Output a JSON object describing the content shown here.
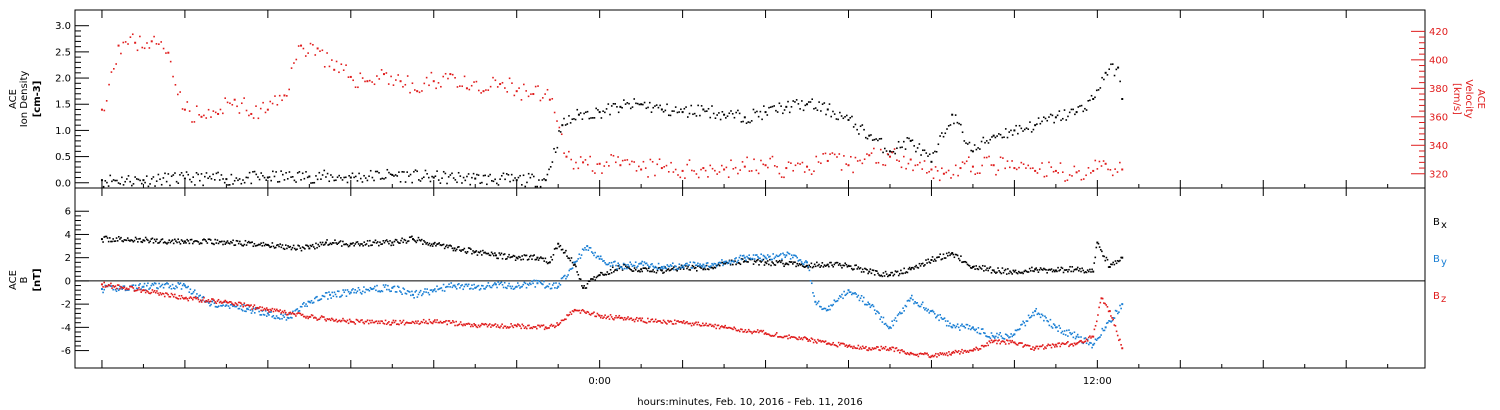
{
  "xlabel": "hours:minutes, Feb. 10, 2016 - Feb. 11, 2016",
  "x_ticks": [
    {
      "t": -12,
      "label": ""
    },
    {
      "t": -10,
      "label": ""
    },
    {
      "t": -8,
      "label": ""
    },
    {
      "t": -6,
      "label": ""
    },
    {
      "t": -4,
      "label": ""
    },
    {
      "t": -2,
      "label": ""
    },
    {
      "t": 0,
      "label": "0:00"
    },
    {
      "t": 2,
      "label": ""
    },
    {
      "t": 4,
      "label": ""
    },
    {
      "t": 6,
      "label": ""
    },
    {
      "t": 8,
      "label": ""
    },
    {
      "t": 10,
      "label": ""
    },
    {
      "t": 12,
      "label": "12:00"
    },
    {
      "t": 14,
      "label": ""
    },
    {
      "t": 16,
      "label": ""
    },
    {
      "t": 18,
      "label": ""
    }
  ],
  "colors": {
    "black": "#000000",
    "red": "#e01c1c",
    "blue": "#1a7fd4"
  },
  "chart_data": [
    {
      "type": "scatter",
      "panel": "plasma",
      "ylabel_lines": [
        "ACE",
        "Ion Density",
        "[cm-3]"
      ],
      "ylabel": "ACE Ion Density [cm-3]",
      "ylim": [
        -0.1,
        3.3
      ],
      "yticks": [
        "0.0",
        "0.5",
        "1.0",
        "1.5",
        "2.0",
        "2.5",
        "3.0"
      ],
      "ytick_values": [
        0.0,
        0.5,
        1.0,
        1.5,
        2.0,
        2.5,
        3.0
      ],
      "y2label_lines": [
        "ACE",
        "Velocity",
        "[km/s]"
      ],
      "y2label": "ACE Velocity [km/s]",
      "y2lim": [
        310,
        435
      ],
      "y2ticks": [
        "320",
        "340",
        "360",
        "380",
        "400",
        "420"
      ],
      "y2tick_values": [
        320,
        340,
        360,
        380,
        400,
        420
      ],
      "series": [
        {
          "name": "Ion Density",
          "axis": "left",
          "color": "#000000",
          "points": [
            [
              -12.0,
              0.05
            ],
            [
              -11,
              0.05
            ],
            [
              -10,
              0.08
            ],
            [
              -9,
              0.07
            ],
            [
              -8,
              0.1
            ],
            [
              -7,
              0.12
            ],
            [
              -6,
              0.1
            ],
            [
              -5,
              0.15
            ],
            [
              -4,
              0.1
            ],
            [
              -3,
              0.08
            ],
            [
              -2,
              0.05
            ],
            [
              -1.3,
              0.05
            ],
            [
              -0.9,
              1.1
            ],
            [
              -0.5,
              1.3
            ],
            [
              0.0,
              1.35
            ],
            [
              0.5,
              1.45
            ],
            [
              1.0,
              1.5
            ],
            [
              1.5,
              1.4
            ],
            [
              2.0,
              1.35
            ],
            [
              2.5,
              1.4
            ],
            [
              3.0,
              1.3
            ],
            [
              3.5,
              1.25
            ],
            [
              4.0,
              1.35
            ],
            [
              4.5,
              1.45
            ],
            [
              5.0,
              1.5
            ],
            [
              5.5,
              1.4
            ],
            [
              6.0,
              1.2
            ],
            [
              6.5,
              0.9
            ],
            [
              7.0,
              0.6
            ],
            [
              7.5,
              0.8
            ],
            [
              8.0,
              0.4
            ],
            [
              8.5,
              1.3
            ],
            [
              9.0,
              0.6
            ],
            [
              9.5,
              0.9
            ],
            [
              10.0,
              1.0
            ],
            [
              10.5,
              1.1
            ],
            [
              11.0,
              1.25
            ],
            [
              11.5,
              1.35
            ],
            [
              11.9,
              1.6
            ],
            [
              12.2,
              2.1
            ],
            [
              12.5,
              2.2
            ],
            [
              12.6,
              1.6
            ]
          ]
        },
        {
          "name": "Velocity",
          "axis": "right",
          "color": "#e01c1c",
          "points": [
            [
              -12.0,
              365
            ],
            [
              -11.6,
              410
            ],
            [
              -11.2,
              412
            ],
            [
              -10.8,
              413
            ],
            [
              -10.4,
              405
            ],
            [
              -10.0,
              365
            ],
            [
              -9.6,
              360
            ],
            [
              -9.2,
              362
            ],
            [
              -8.8,
              372
            ],
            [
              -8.4,
              362
            ],
            [
              -8.0,
              365
            ],
            [
              -7.6,
              375
            ],
            [
              -7.2,
              410
            ],
            [
              -6.8,
              408
            ],
            [
              -6.4,
              393
            ],
            [
              -6.0,
              388
            ],
            [
              -5.6,
              385
            ],
            [
              -5.2,
              390
            ],
            [
              -4.8,
              385
            ],
            [
              -4.4,
              378
            ],
            [
              -4.0,
              385
            ],
            [
              -3.6,
              390
            ],
            [
              -3.2,
              380
            ],
            [
              -2.8,
              378
            ],
            [
              -2.4,
              383
            ],
            [
              -2.0,
              378
            ],
            [
              -1.6,
              376
            ],
            [
              -1.2,
              372
            ],
            [
              -0.8,
              332
            ],
            [
              -0.4,
              328
            ],
            [
              0.0,
              327
            ],
            [
              0.5,
              326
            ],
            [
              1.0,
              323
            ],
            [
              1.5,
              324
            ],
            [
              2.0,
              322
            ],
            [
              2.5,
              324
            ],
            [
              3.0,
              323
            ],
            [
              3.5,
              325
            ],
            [
              4.0,
              326
            ],
            [
              4.5,
              324
            ],
            [
              5.0,
              325
            ],
            [
              5.5,
              329
            ],
            [
              6.0,
              326
            ],
            [
              6.5,
              333
            ],
            [
              7.0,
              332
            ],
            [
              7.5,
              330
            ],
            [
              8.0,
              323
            ],
            [
              8.3,
              320
            ],
            [
              8.7,
              324
            ],
            [
              9.0,
              325
            ],
            [
              9.5,
              326
            ],
            [
              10.0,
              324
            ],
            [
              10.5,
              322
            ],
            [
              11.0,
              322
            ],
            [
              11.5,
              321
            ],
            [
              11.9,
              322
            ],
            [
              12.2,
              327
            ],
            [
              12.6,
              323
            ]
          ]
        }
      ]
    },
    {
      "type": "scatter",
      "panel": "magnetic",
      "ylabel_lines": [
        "ACE",
        "B",
        "[nT]"
      ],
      "ylabel": "ACE B [nT]",
      "ylim": [
        -7.5,
        8.0
      ],
      "yticks": [
        "-6",
        "-4",
        "-2",
        "0",
        "2",
        "4",
        "6"
      ],
      "ytick_values": [
        -6,
        -4,
        -2,
        0,
        2,
        4,
        6
      ],
      "zero_line": 0,
      "series": [
        {
          "name": "Bx",
          "label_main": "B",
          "label_sub": "x",
          "color": "#000000",
          "points": [
            [
              -12.0,
              3.6
            ],
            [
              -11.0,
              3.5
            ],
            [
              -10.0,
              3.4
            ],
            [
              -9.0,
              3.3
            ],
            [
              -8.0,
              3.1
            ],
            [
              -7.0,
              2.8
            ],
            [
              -6.6,
              3.3
            ],
            [
              -6.0,
              3.2
            ],
            [
              -5.0,
              3.3
            ],
            [
              -4.5,
              3.6
            ],
            [
              -4.0,
              3.2
            ],
            [
              -3.5,
              2.8
            ],
            [
              -3.0,
              2.5
            ],
            [
              -2.5,
              2.2
            ],
            [
              -2.0,
              2.0
            ],
            [
              -1.5,
              2.0
            ],
            [
              -1.2,
              1.6
            ],
            [
              -1.0,
              3.2
            ],
            [
              -0.6,
              1.4
            ],
            [
              -0.4,
              -0.6
            ],
            [
              0.0,
              0.5
            ],
            [
              0.5,
              1.2
            ],
            [
              1.0,
              1.0
            ],
            [
              1.5,
              0.9
            ],
            [
              2.0,
              1.2
            ],
            [
              2.5,
              1.0
            ],
            [
              3.0,
              1.5
            ],
            [
              3.5,
              1.7
            ],
            [
              4.0,
              1.6
            ],
            [
              4.5,
              1.5
            ],
            [
              5.0,
              1.3
            ],
            [
              5.5,
              1.4
            ],
            [
              6.0,
              1.3
            ],
            [
              6.5,
              0.8
            ],
            [
              7.0,
              0.5
            ],
            [
              7.5,
              1.0
            ],
            [
              8.0,
              1.8
            ],
            [
              8.5,
              2.4
            ],
            [
              9.0,
              1.2
            ],
            [
              9.5,
              0.9
            ],
            [
              10.0,
              0.8
            ],
            [
              10.5,
              1.0
            ],
            [
              11.0,
              0.9
            ],
            [
              11.5,
              1.0
            ],
            [
              11.9,
              0.8
            ],
            [
              12.0,
              3.3
            ],
            [
              12.3,
              1.2
            ],
            [
              12.6,
              2.0
            ]
          ]
        },
        {
          "name": "By",
          "label_main": "B",
          "label_sub": "y",
          "color": "#1a7fd4",
          "points": [
            [
              -12.0,
              -0.7
            ],
            [
              -11.0,
              -0.5
            ],
            [
              -10.0,
              -0.4
            ],
            [
              -9.5,
              -1.8
            ],
            [
              -9.0,
              -2.1
            ],
            [
              -8.5,
              -2.4
            ],
            [
              -8.0,
              -2.8
            ],
            [
              -7.5,
              -3.2
            ],
            [
              -7.0,
              -1.8
            ],
            [
              -6.5,
              -1.2
            ],
            [
              -6.0,
              -1.0
            ],
            [
              -5.5,
              -0.7
            ],
            [
              -5.0,
              -0.6
            ],
            [
              -4.5,
              -1.2
            ],
            [
              -4.0,
              -0.8
            ],
            [
              -3.5,
              -0.4
            ],
            [
              -3.0,
              -0.6
            ],
            [
              -2.5,
              -0.3
            ],
            [
              -2.0,
              -0.5
            ],
            [
              -1.5,
              -0.2
            ],
            [
              -1.0,
              -0.5
            ],
            [
              -0.6,
              1.6
            ],
            [
              -0.3,
              3.0
            ],
            [
              0.0,
              1.9
            ],
            [
              0.5,
              1.2
            ],
            [
              1.0,
              1.5
            ],
            [
              1.5,
              1.2
            ],
            [
              2.0,
              1.3
            ],
            [
              2.5,
              1.4
            ],
            [
              3.0,
              1.6
            ],
            [
              3.5,
              2.0
            ],
            [
              4.0,
              2.0
            ],
            [
              4.5,
              2.2
            ],
            [
              5.0,
              1.6
            ],
            [
              5.2,
              -1.8
            ],
            [
              5.5,
              -2.5
            ],
            [
              6.0,
              -0.8
            ],
            [
              6.5,
              -2.0
            ],
            [
              7.0,
              -4.0
            ],
            [
              7.5,
              -1.5
            ],
            [
              8.0,
              -2.6
            ],
            [
              8.5,
              -4.0
            ],
            [
              9.0,
              -4.0
            ],
            [
              9.5,
              -4.8
            ],
            [
              10.0,
              -4.6
            ],
            [
              10.5,
              -2.6
            ],
            [
              11.0,
              -4.0
            ],
            [
              11.5,
              -4.8
            ],
            [
              11.9,
              -5.5
            ],
            [
              12.2,
              -4.0
            ],
            [
              12.6,
              -2.0
            ]
          ]
        },
        {
          "name": "Bz",
          "label_main": "B",
          "label_sub": "z",
          "color": "#e01c1c",
          "points": [
            [
              -12.0,
              -0.3
            ],
            [
              -11.0,
              -0.8
            ],
            [
              -10.0,
              -1.5
            ],
            [
              -9.0,
              -1.8
            ],
            [
              -8.0,
              -2.5
            ],
            [
              -7.0,
              -3.1
            ],
            [
              -6.0,
              -3.5
            ],
            [
              -5.0,
              -3.6
            ],
            [
              -4.0,
              -3.5
            ],
            [
              -3.0,
              -3.8
            ],
            [
              -2.0,
              -3.9
            ],
            [
              -1.3,
              -4.0
            ],
            [
              -1.0,
              -3.8
            ],
            [
              -0.6,
              -2.5
            ],
            [
              0.0,
              -3.0
            ],
            [
              0.5,
              -3.2
            ],
            [
              1.0,
              -3.4
            ],
            [
              2.0,
              -3.6
            ],
            [
              3.0,
              -4.0
            ],
            [
              4.0,
              -4.5
            ],
            [
              5.0,
              -5.0
            ],
            [
              5.5,
              -5.4
            ],
            [
              6.0,
              -5.6
            ],
            [
              6.5,
              -5.8
            ],
            [
              7.0,
              -5.8
            ],
            [
              7.5,
              -6.2
            ],
            [
              8.0,
              -6.5
            ],
            [
              8.5,
              -6.2
            ],
            [
              9.0,
              -6.0
            ],
            [
              9.5,
              -5.2
            ],
            [
              10.0,
              -5.3
            ],
            [
              10.5,
              -5.8
            ],
            [
              11.0,
              -5.5
            ],
            [
              11.5,
              -5.4
            ],
            [
              11.9,
              -4.8
            ],
            [
              12.1,
              -1.5
            ],
            [
              12.3,
              -2.6
            ],
            [
              12.6,
              -5.8
            ]
          ]
        }
      ]
    }
  ]
}
